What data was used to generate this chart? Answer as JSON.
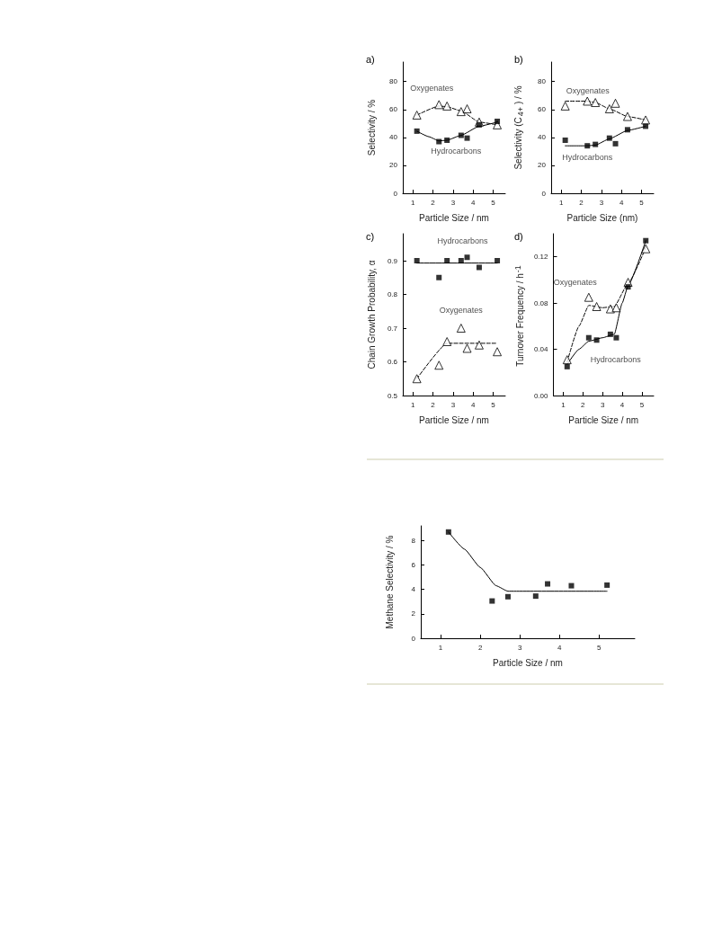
{
  "chart_data": [
    {
      "type": "scatter",
      "title": "a)",
      "xlabel": "Particle Size / nm",
      "ylabel": "Selectivity / %",
      "xlim": [
        0.5,
        5.6
      ],
      "xticks": [
        1,
        2,
        3,
        4,
        5
      ],
      "ylim": [
        0,
        94
      ],
      "yticks": [
        0,
        20,
        40,
        60,
        80
      ],
      "grid": false,
      "legend": false,
      "series": [
        {
          "type": "line",
          "line_style": "dashed",
          "marker": "none",
          "color": "#000000",
          "x": [
            1.2,
            2.3,
            2.7,
            3.4,
            4.3,
            5.2
          ],
          "values": [
            56,
            62.5,
            62,
            59,
            51,
            49
          ]
        },
        {
          "type": "line",
          "line_style": "solid",
          "marker": "none",
          "color": "#000000",
          "x": [
            1.2,
            1.8,
            2.3,
            2.7,
            3.4,
            4.3,
            5.2
          ],
          "values": [
            44.5,
            40.5,
            37.5,
            38,
            41.5,
            48,
            51
          ]
        },
        {
          "name": "Oxygenates",
          "marker": "triangle",
          "color": "#000000",
          "x": [
            1.2,
            2.3,
            2.7,
            3.4,
            3.7,
            4.3,
            5.2
          ],
          "values": [
            56,
            63.5,
            62.5,
            58.5,
            60.5,
            51,
            49
          ]
        },
        {
          "name": "Hydrocarbons",
          "marker": "square",
          "color": "#000000",
          "x": [
            1.2,
            2.3,
            2.7,
            3.4,
            3.7,
            4.3,
            5.2
          ],
          "values": [
            44.5,
            37,
            38,
            41.5,
            39.5,
            49,
            51.5
          ]
        }
      ]
    },
    {
      "type": "scatter",
      "title": "b)",
      "xlabel": "Particle Size (nm)",
      "ylabel": "Selectivity (C$_{4+}$) / %",
      "xlim": [
        0.5,
        5.6
      ],
      "xticks": [
        1,
        2,
        3,
        4,
        5
      ],
      "ylim": [
        0,
        94
      ],
      "yticks": [
        0,
        20,
        40,
        60,
        80
      ],
      "grid": false,
      "legend": false,
      "series": [
        {
          "type": "line",
          "line_style": "dashed",
          "marker": "none",
          "color": "#000000",
          "x": [
            1.2,
            2.3,
            2.7,
            3.4,
            4.3,
            5.2
          ],
          "values": [
            66,
            66,
            65,
            60.5,
            55,
            52.5
          ]
        },
        {
          "type": "line",
          "line_style": "solid",
          "marker": "none",
          "color": "#000000",
          "x": [
            1.2,
            2.3,
            2.7,
            3.4,
            4.3,
            5.2
          ],
          "values": [
            34,
            34,
            34.5,
            39,
            45,
            48
          ]
        },
        {
          "name": "Oxygenates",
          "marker": "triangle",
          "color": "#000000",
          "x": [
            1.2,
            2.3,
            2.7,
            3.4,
            3.7,
            4.3,
            5.2
          ],
          "values": [
            62.5,
            66,
            65,
            60.5,
            64.5,
            55,
            52.5
          ]
        },
        {
          "name": "Hydrocarbons",
          "marker": "square",
          "color": "#000000",
          "x": [
            1.2,
            2.3,
            2.7,
            3.4,
            3.7,
            4.3,
            5.2
          ],
          "values": [
            38,
            34,
            35,
            39.5,
            35.5,
            45.5,
            48
          ]
        }
      ]
    },
    {
      "type": "scatter",
      "title": "c)",
      "xlabel": "Particle Size / nm",
      "ylabel": "Chain Growth Probability, α",
      "xlim": [
        0.5,
        5.6
      ],
      "xticks": [
        1,
        2,
        3,
        4,
        5
      ],
      "ylim": [
        0.5,
        0.98
      ],
      "yticks": [
        0.5,
        0.6,
        0.7,
        0.8,
        0.9
      ],
      "grid": false,
      "legend": false,
      "series": [
        {
          "type": "line",
          "line_style": "solid",
          "marker": "none",
          "color": "#000000",
          "x": [
            1.2,
            5.2
          ],
          "values": [
            0.893,
            0.893
          ]
        },
        {
          "type": "line",
          "line_style": "dashed",
          "marker": "none",
          "color": "#000000",
          "x": [
            1.2,
            2.7,
            5.2
          ],
          "values": [
            0.55,
            0.655,
            0.655
          ]
        },
        {
          "name": "Hydrocarbons",
          "marker": "square",
          "color": "#000000",
          "x": [
            1.2,
            2.3,
            2.7,
            3.4,
            3.7,
            4.3,
            5.2
          ],
          "values": [
            0.9,
            0.85,
            0.9,
            0.9,
            0.91,
            0.88,
            0.9
          ]
        },
        {
          "name": "Oxygenates",
          "marker": "triangle",
          "color": "#000000",
          "x": [
            1.2,
            2.3,
            2.7,
            3.4,
            3.7,
            4.3,
            5.2
          ],
          "values": [
            0.55,
            0.59,
            0.66,
            0.7,
            0.64,
            0.65,
            0.63
          ]
        }
      ]
    },
    {
      "type": "scatter",
      "title": "d)",
      "xlabel": "Particle Size / nm",
      "ylabel": "Turnover Frequency / h$^{-1}$",
      "xlim": [
        0.5,
        5.6
      ],
      "xticks": [
        1,
        2,
        3,
        4,
        5
      ],
      "ylim": [
        0,
        0.14
      ],
      "yticks": [
        {
          "value": 0,
          "label": "0.00"
        },
        0.04,
        0.08,
        0.12
      ],
      "grid": false,
      "legend": false,
      "series": [
        {
          "type": "line",
          "line_style": "dashed",
          "marker": "none",
          "color": "#000000",
          "x": [
            1.2,
            1.8,
            2.3,
            3.0,
            3.6,
            4.3,
            5.2
          ],
          "values": [
            0.029,
            0.06,
            0.078,
            0.076,
            0.077,
            0.097,
            0.128
          ]
        },
        {
          "type": "line",
          "line_style": "solid",
          "marker": "none",
          "color": "#000000",
          "x": [
            1.2,
            1.8,
            2.3,
            3.0,
            3.6,
            4.0,
            4.3,
            5.2
          ],
          "values": [
            0.027,
            0.04,
            0.047,
            0.05,
            0.053,
            0.08,
            0.095,
            0.134
          ]
        },
        {
          "name": "Oxygenates",
          "marker": "triangle",
          "color": "#000000",
          "x": [
            1.2,
            2.3,
            2.7,
            3.4,
            3.7,
            4.3,
            5.2
          ],
          "values": [
            0.031,
            0.085,
            0.077,
            0.075,
            0.076,
            0.098,
            0.127
          ]
        },
        {
          "name": "Hydrocarbons",
          "marker": "square",
          "color": "#000000",
          "x": [
            1.2,
            2.3,
            2.7,
            3.4,
            3.7,
            4.3,
            5.2
          ],
          "values": [
            0.025,
            0.05,
            0.048,
            0.053,
            0.05,
            0.094,
            0.134
          ]
        }
      ]
    },
    {
      "type": "scatter",
      "xlabel": "Particle Size / nm",
      "ylabel": "Methane Selectivity / %",
      "xlim": [
        0.5,
        5.9
      ],
      "xticks": [
        1,
        2,
        3,
        4,
        5
      ],
      "ylim": [
        0,
        9.2
      ],
      "yticks": [
        0,
        2,
        4,
        6,
        8
      ],
      "grid": false,
      "legend": false,
      "series": [
        {
          "type": "line",
          "line_style": "solid",
          "marker": "none",
          "color": "#000000",
          "x": [
            1.2,
            1.6,
            2.0,
            2.4,
            2.7,
            5.2
          ],
          "values": [
            8.7,
            7.3,
            5.8,
            4.3,
            3.85,
            3.85
          ]
        },
        {
          "marker": "square",
          "color": "#000000",
          "x": [
            1.2,
            2.3,
            2.7,
            3.4,
            3.7,
            4.3,
            5.2
          ],
          "values": [
            8.7,
            3.05,
            3.4,
            3.45,
            4.45,
            4.3,
            4.35
          ]
        }
      ]
    }
  ]
}
